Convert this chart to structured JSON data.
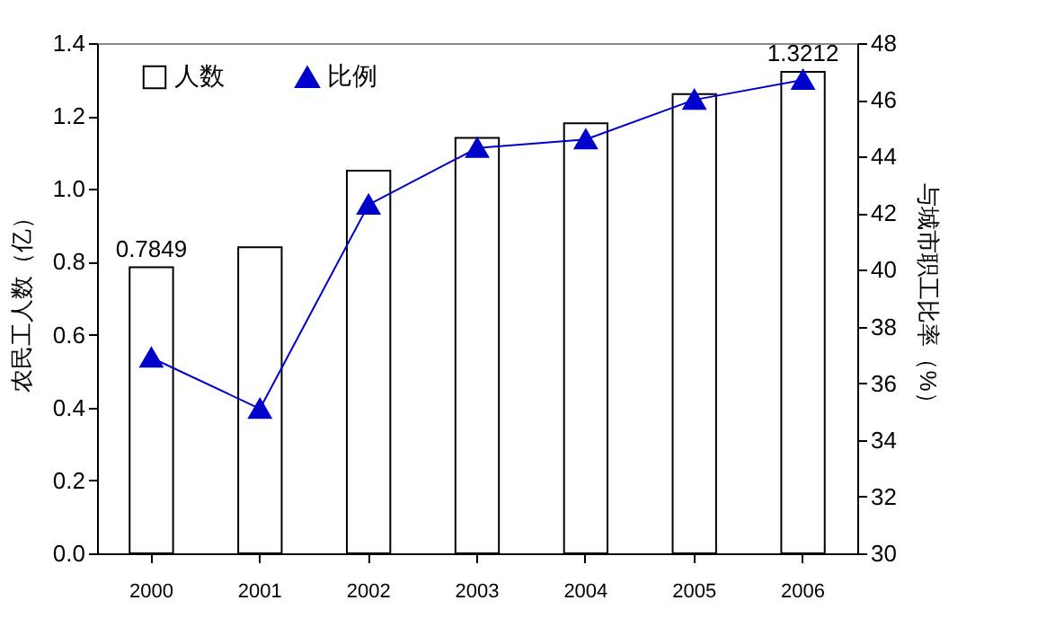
{
  "chart_data": {
    "type": "bar",
    "categories": [
      "2000",
      "2001",
      "2002",
      "2003",
      "2004",
      "2005",
      "2006"
    ],
    "series": [
      {
        "name": "人数",
        "color": "#ffffff",
        "values": [
          0.7849,
          0.84,
          1.05,
          1.14,
          1.18,
          1.26,
          1.3212
        ],
        "value_labels": [
          "0.7849",
          null,
          null,
          null,
          null,
          null,
          "1.3212"
        ]
      },
      {
        "name": "比例",
        "type": "line",
        "axis": "y2",
        "color": "#0000cc",
        "marker": "triangle",
        "values": [
          36.9,
          35.1,
          42.3,
          44.3,
          44.6,
          46.0,
          46.7
        ]
      }
    ],
    "ylabel": "农民工人数（亿）",
    "y2label": "与城市职工比率（%）",
    "ylim": [
      0,
      1.4
    ],
    "yticks": [
      {
        "value": 0,
        "label": "0.0"
      },
      0.2,
      0.4,
      0.6,
      0.8,
      {
        "value": 1,
        "label": "1.0"
      },
      1.2,
      1.4
    ],
    "y2lim": [
      30,
      48
    ],
    "y2ticks": [
      30,
      32,
      34,
      36,
      38,
      40,
      42,
      44,
      46,
      48
    ],
    "legend": "top left",
    "grid": false
  }
}
